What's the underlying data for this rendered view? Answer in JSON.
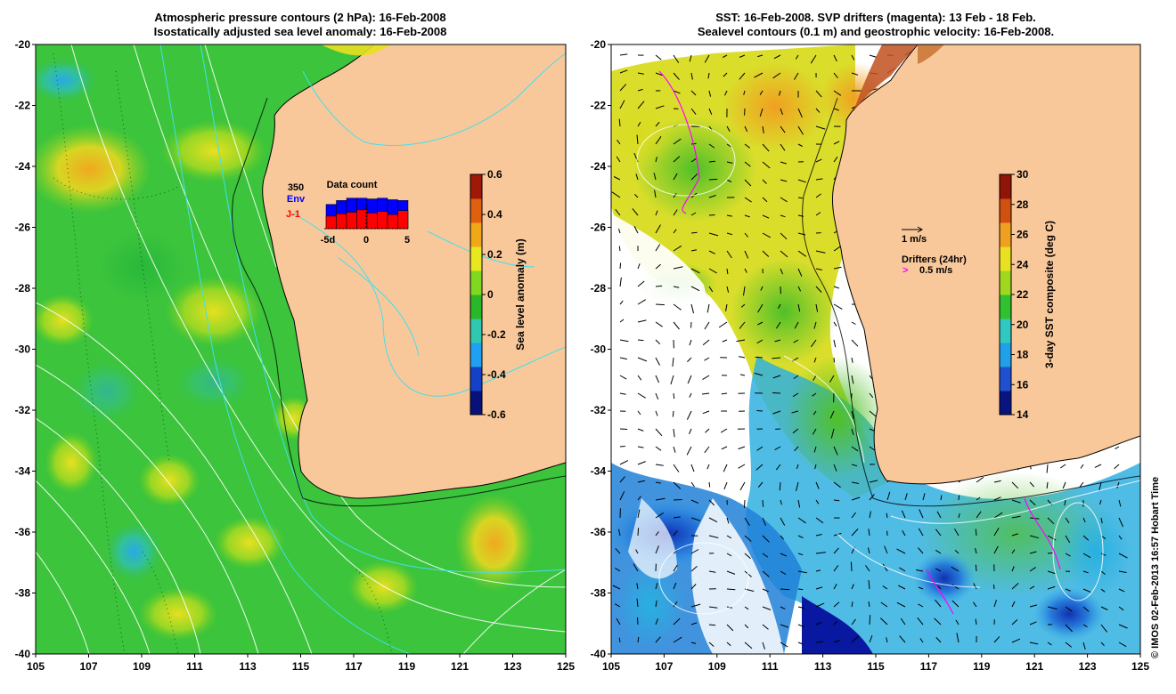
{
  "left_panel": {
    "title_line1": "Atmospheric pressure contours (2 hPa): 16-Feb-2008",
    "title_line2": "Isostatically adjusted sea level anomaly: 16-Feb-2008",
    "colorbar": {
      "label": "Sea level anomaly (m)",
      "ticks": [
        "0.6",
        "0.4",
        "0.2",
        "0",
        "-0.2",
        "-0.4",
        "-0.6"
      ],
      "colors": [
        "#08107a",
        "#1540c8",
        "#20a0f0",
        "#30c8b0",
        "#28b828",
        "#80d820",
        "#e8e820",
        "#f0a818",
        "#e06010",
        "#a01808"
      ]
    },
    "inset": {
      "title": "Data count",
      "max_label": "350",
      "env_label": "Env",
      "j1_label": "J-1",
      "x_ticks": [
        "-5d",
        "0",
        "5"
      ],
      "env_color": "#0000ff",
      "j1_color": "#ff0000",
      "env_counts": [
        0.62,
        0.72,
        0.78,
        0.78,
        0.76,
        0.78,
        0.74,
        0.72
      ],
      "j1_counts": [
        0.32,
        0.38,
        0.42,
        0.48,
        0.4,
        0.44,
        0.36,
        0.46
      ]
    }
  },
  "right_panel": {
    "title_line1": "SST: 16-Feb-2008. SVP drifters (magenta): 13 Feb - 18 Feb.",
    "title_line2": "Sealevel contours (0.1 m) and geostrophic velocity: 16-Feb-2008.",
    "colorbar": {
      "label": "3-day SST composite (deg C)",
      "ticks": [
        "30",
        "28",
        "26",
        "24",
        "22",
        "20",
        "18",
        "16",
        "14"
      ],
      "colors": [
        "#0a1480",
        "#1e50d0",
        "#20a0e8",
        "#30c8c0",
        "#30c030",
        "#a0d820",
        "#e8e020",
        "#f0a020",
        "#d05010",
        "#901408"
      ]
    },
    "velocity_legend": "1 m/s",
    "drifter_legend_title": "Drifters (24hr)",
    "drifter_legend_value": "0.5 m/s",
    "drifter_symbol": ">"
  },
  "axes": {
    "x_ticks": [
      "105",
      "107",
      "109",
      "111",
      "113",
      "115",
      "117",
      "119",
      "121",
      "123",
      "125"
    ],
    "y_ticks": [
      "-20",
      "-22",
      "-24",
      "-26",
      "-28",
      "-30",
      "-32",
      "-34",
      "-36",
      "-38",
      "-40"
    ],
    "lon_range": [
      105,
      125
    ],
    "lat_range": [
      -20,
      -40
    ]
  },
  "credit": "© IMOS 02-Feb-2013 16:57 Hobart Time",
  "colors": {
    "land": "#f9c89a",
    "ocean_left": "#3cc43c",
    "ocean_right": "#ffffff",
    "pressure_contour": "#ffffff",
    "sealevel_contour": "#40e0f0",
    "coastline": "#000000",
    "drifter": "#ff00ff"
  }
}
